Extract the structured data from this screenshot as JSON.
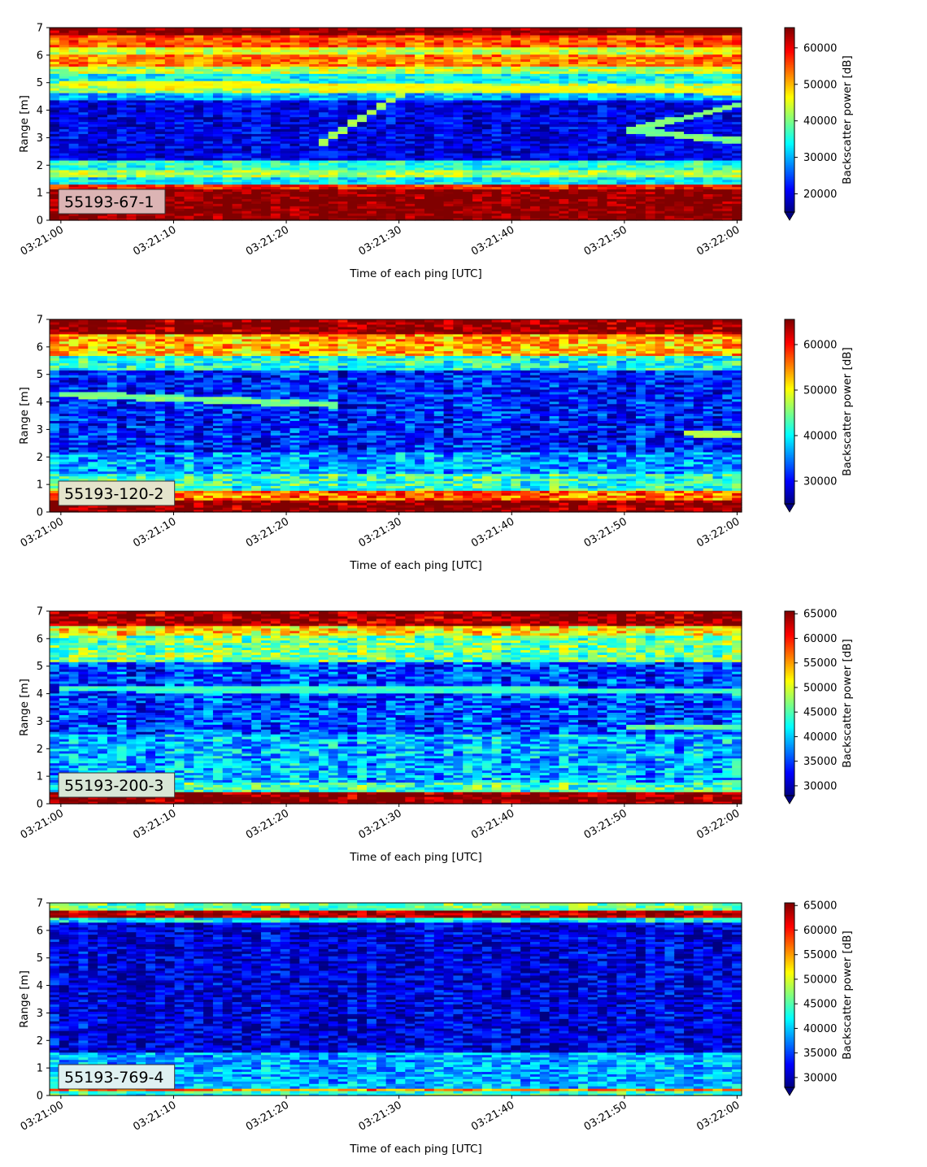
{
  "colormap": "jet",
  "chart_data": [
    {
      "type": "heatmap",
      "panel_tag": "55193-67-1",
      "tag_bg": "#dcb4b4",
      "xlabel": "Time of each ping [UTC]",
      "ylabel": "Range [m]",
      "x_ticks": [
        "03:21:00",
        "03:21:10",
        "03:21:20",
        "03:21:30",
        "03:21:40",
        "03:21:50",
        "03:22:00"
      ],
      "y_ticks": [
        0,
        1,
        2,
        3,
        4,
        5,
        6,
        7
      ],
      "ylim": [
        0,
        7
      ],
      "colorbar": {
        "label": "Backscatter power [dB]",
        "range": [
          15000,
          65535
        ],
        "ticks": [
          20000,
          30000,
          40000,
          50000,
          60000
        ],
        "extend": "min"
      },
      "profile": {
        "bands": [
          [
            0.2,
            1.15,
            65500
          ],
          [
            1.15,
            1.3,
            58000
          ],
          [
            1.3,
            1.6,
            33000
          ],
          [
            1.6,
            1.8,
            42000
          ],
          [
            1.8,
            2.15,
            36000
          ],
          [
            2.15,
            4.4,
            20000
          ],
          [
            4.4,
            4.6,
            30000
          ],
          [
            4.6,
            5.0,
            43000
          ],
          [
            5.0,
            5.3,
            34000
          ],
          [
            5.3,
            5.6,
            43000
          ],
          [
            5.6,
            6.0,
            53000
          ],
          [
            6.0,
            6.3,
            44000
          ],
          [
            6.3,
            6.7,
            55000
          ],
          [
            6.7,
            7.0,
            65500
          ]
        ],
        "noise": 5000
      },
      "trails": [
        {
          "t0": 23,
          "r0": 2.8,
          "t1": 31,
          "r1": 4.8,
          "v": 42000
        },
        {
          "t0": 0,
          "r0": 5.0,
          "t1": 60,
          "r1": 4.7,
          "v": 46000
        },
        {
          "t0": 50,
          "r0": 3.3,
          "t1": 60,
          "r1": 2.9,
          "v": 40000
        },
        {
          "t0": 51,
          "r0": 3.3,
          "t1": 60,
          "r1": 4.2,
          "v": 40000
        }
      ]
    },
    {
      "type": "heatmap",
      "panel_tag": "55193-120-2",
      "tag_bg": "#e4e4cc",
      "xlabel": "Time of each ping [UTC]",
      "ylabel": "Range [m]",
      "x_ticks": [
        "03:21:00",
        "03:21:10",
        "03:21:20",
        "03:21:30",
        "03:21:40",
        "03:21:50",
        "03:22:00"
      ],
      "y_ticks": [
        0,
        1,
        2,
        3,
        4,
        5,
        6,
        7
      ],
      "ylim": [
        0,
        7
      ],
      "colorbar": {
        "label": "Backscatter power [dB]",
        "range": [
          25000,
          65535
        ],
        "ticks": [
          30000,
          40000,
          50000,
          60000
        ],
        "extend": "min"
      },
      "profile": {
        "bands": [
          [
            0.0,
            0.45,
            65500
          ],
          [
            0.45,
            0.75,
            56000
          ],
          [
            0.75,
            1.4,
            42000
          ],
          [
            1.4,
            2.2,
            36000
          ],
          [
            2.2,
            5.2,
            31000
          ],
          [
            5.2,
            5.7,
            41000
          ],
          [
            5.7,
            6.5,
            53000
          ],
          [
            6.5,
            7.0,
            65500
          ]
        ],
        "noise": 5500
      },
      "trails": [
        {
          "t0": 0,
          "r0": 4.3,
          "t1": 25,
          "r1": 3.9,
          "v": 45000
        },
        {
          "t0": 55,
          "r0": 2.9,
          "t1": 60,
          "r1": 2.8,
          "v": 47000
        }
      ]
    },
    {
      "type": "heatmap",
      "panel_tag": "55193-200-3",
      "tag_bg": "#d8e6d6",
      "xlabel": "Time of each ping [UTC]",
      "ylabel": "Range [m]",
      "x_ticks": [
        "03:21:00",
        "03:21:10",
        "03:21:20",
        "03:21:30",
        "03:21:40",
        "03:21:50",
        "03:22:00"
      ],
      "y_ticks": [
        0,
        1,
        2,
        3,
        4,
        5,
        6,
        7
      ],
      "ylim": [
        0,
        7
      ],
      "colorbar": {
        "label": "Backscatter power [dB]",
        "range": [
          28000,
          65535
        ],
        "ticks": [
          30000,
          35000,
          40000,
          45000,
          50000,
          55000,
          60000,
          65000
        ],
        "extend": "min"
      },
      "profile": {
        "bands": [
          [
            0.0,
            0.45,
            65500
          ],
          [
            0.45,
            0.8,
            44000
          ],
          [
            0.8,
            2.5,
            39000
          ],
          [
            2.5,
            5.2,
            35000
          ],
          [
            5.2,
            6.1,
            46000
          ],
          [
            6.1,
            6.5,
            52000
          ],
          [
            6.5,
            7.0,
            64500
          ]
        ],
        "noise": 5500
      },
      "trails": [
        {
          "t0": 0,
          "r0": 4.2,
          "t1": 60,
          "r1": 4.1,
          "v": 44000
        },
        {
          "t0": 50,
          "r0": 2.8,
          "t1": 60,
          "r1": 2.8,
          "v": 46000
        }
      ]
    },
    {
      "type": "heatmap",
      "panel_tag": "55193-769-4",
      "tag_bg": "#dff1f1",
      "xlabel": "Time of each ping [UTC]",
      "ylabel": "Range [m]",
      "x_ticks": [
        "03:21:00",
        "03:21:10",
        "03:21:20",
        "03:21:30",
        "03:21:40",
        "03:21:50",
        "03:22:00"
      ],
      "y_ticks": [
        0,
        1,
        2,
        3,
        4,
        5,
        6,
        7
      ],
      "ylim": [
        0,
        7
      ],
      "colorbar": {
        "label": "Backscatter power [dB]",
        "range": [
          28000,
          65535
        ],
        "ticks": [
          30000,
          35000,
          40000,
          45000,
          50000,
          55000,
          60000,
          65000
        ],
        "extend": "min"
      },
      "profile": {
        "bands": [
          [
            0.0,
            0.15,
            44000
          ],
          [
            0.15,
            0.3,
            56000
          ],
          [
            0.3,
            0.45,
            40000
          ],
          [
            0.45,
            1.6,
            39000
          ],
          [
            1.6,
            6.3,
            31500
          ],
          [
            6.3,
            6.5,
            42000
          ],
          [
            6.5,
            6.75,
            64000
          ],
          [
            6.75,
            7.0,
            46000
          ]
        ],
        "noise": 4500
      },
      "trails": []
    }
  ]
}
